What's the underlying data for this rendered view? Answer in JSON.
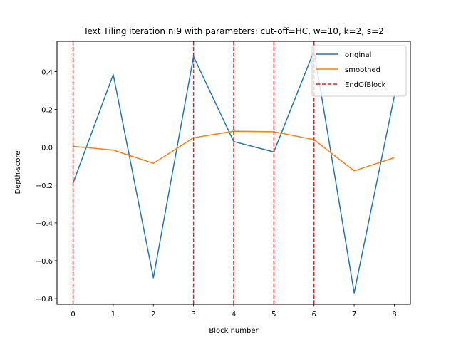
{
  "chart_data": {
    "type": "line",
    "title": "Text Tiling iteration n:9 with parameters: cut-off=HC, w=10, k=2, s=2",
    "xlabel": "Block number",
    "ylabel": "Depth-score",
    "xlim": [
      -0.4,
      8.4
    ],
    "ylim": [
      -0.83,
      0.56
    ],
    "x": [
      0,
      1,
      2,
      3,
      4,
      5,
      6,
      7,
      8
    ],
    "x_ticks": [
      0,
      1,
      2,
      3,
      4,
      5,
      6,
      7,
      8
    ],
    "y_ticks": [
      -0.8,
      -0.6,
      -0.4,
      -0.2,
      0.0,
      0.2,
      0.4
    ],
    "y_tick_labels": [
      "−0.8",
      "−0.6",
      "−0.4",
      "−0.2",
      "0.0",
      "0.2",
      "0.4"
    ],
    "series": [
      {
        "name": "original",
        "color": "#1f77b4",
        "values": [
          -0.19,
          0.385,
          -0.69,
          0.48,
          0.03,
          -0.025,
          0.51,
          -0.77,
          0.27
        ]
      },
      {
        "name": "smoothed",
        "color": "#ff7f0e",
        "values": [
          0.005,
          -0.015,
          -0.085,
          0.05,
          0.085,
          0.082,
          0.04,
          -0.125,
          -0.055
        ]
      }
    ],
    "end_of_block": {
      "name": "EndOfBlock",
      "color": "#d62728",
      "style": "dashed",
      "x": [
        0,
        3,
        4,
        5,
        6
      ]
    },
    "legend_position": "top-right",
    "grid": false
  }
}
